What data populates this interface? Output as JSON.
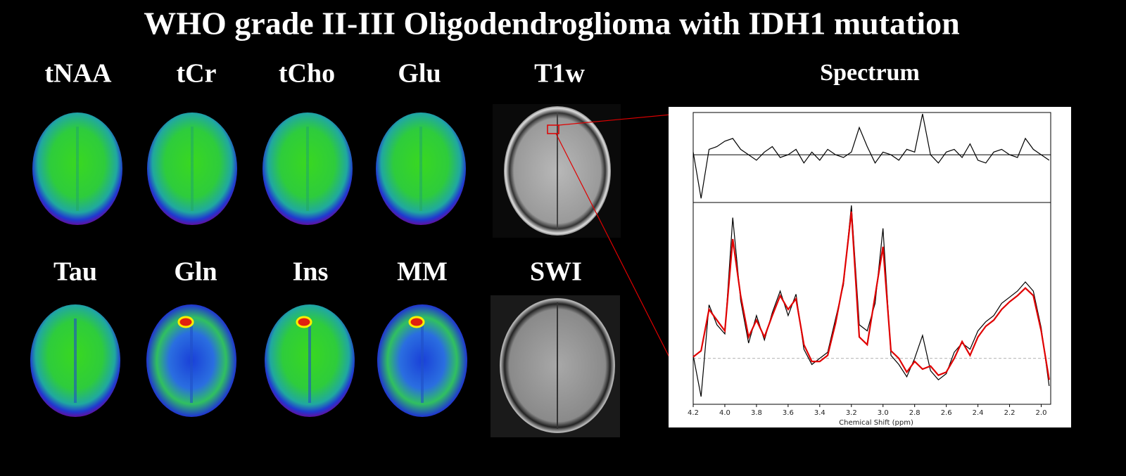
{
  "title": "WHO grade II-III Oligodendroglioma with IDH1 mutation",
  "maps": {
    "row1": [
      "tNAA",
      "tCr",
      "tCho",
      "Glu"
    ],
    "row2": [
      "Tau",
      "Gln",
      "Ins",
      "MM"
    ]
  },
  "anatomy": [
    "T1w",
    "SWI"
  ],
  "spectrum_title": "Spectrum",
  "chart_data": {
    "type": "line",
    "xlabel": "Chemical Shift (ppm)",
    "x": [
      4.2,
      4.15,
      4.1,
      4.05,
      4.0,
      3.95,
      3.9,
      3.85,
      3.8,
      3.75,
      3.7,
      3.65,
      3.6,
      3.55,
      3.5,
      3.45,
      3.4,
      3.35,
      3.3,
      3.25,
      3.2,
      3.15,
      3.1,
      3.05,
      3.0,
      2.95,
      2.9,
      2.85,
      2.8,
      2.75,
      2.7,
      2.65,
      2.6,
      2.55,
      2.5,
      2.45,
      2.4,
      2.35,
      2.3,
      2.25,
      2.2,
      2.15,
      2.1,
      2.05,
      2.0,
      1.95
    ],
    "xlim": [
      4.2,
      1.94
    ],
    "xticks": [
      4.2,
      {
        "value": 4.0,
        "label": "4.0"
      },
      3.8,
      3.6,
      3.4,
      3.2,
      {
        "value": 3.0,
        "label": "3.0"
      },
      2.8,
      2.6,
      2.4,
      2.2,
      {
        "value": 2.0,
        "label": "2.0"
      }
    ],
    "ylim": [
      -30,
      101
    ],
    "series": [
      {
        "color": "#000000",
        "values": [
          2,
          -25,
          35,
          22,
          16,
          92,
          38,
          10,
          28,
          12,
          30,
          44,
          28,
          42,
          6,
          -4,
          0,
          4,
          26,
          48,
          100,
          22,
          18,
          36,
          85,
          2,
          -4,
          -12,
          0,
          15,
          -8,
          -14,
          -10,
          4,
          10,
          6,
          18,
          24,
          28,
          36,
          40,
          44,
          50,
          44,
          20,
          -18
        ]
      },
      {
        "color": "#e00000",
        "values": [
          1,
          5,
          32,
          25,
          18,
          78,
          41,
          14,
          25,
          14,
          28,
          41,
          32,
          39,
          9,
          -2,
          -2,
          2,
          23,
          50,
          96,
          14,
          9,
          41,
          73,
          5,
          0,
          -9,
          -2,
          -7,
          -5,
          -11,
          -9,
          0,
          11,
          2,
          14,
          21,
          25,
          32,
          37,
          41,
          46,
          41,
          18,
          -14
        ]
      }
    ],
    "residual": {
      "ylim": [
        -34,
        30
      ],
      "color": "#000000",
      "values": [
        2,
        -32,
        4,
        6,
        10,
        12,
        4,
        0,
        -4,
        2,
        6,
        -2,
        0,
        4,
        -6,
        2,
        -4,
        4,
        0,
        -2,
        2,
        20,
        6,
        -6,
        2,
        0,
        -4,
        4,
        2,
        30,
        0,
        -6,
        2,
        4,
        -2,
        8,
        -4,
        -6,
        2,
        4,
        0,
        -2,
        12,
        4,
        0,
        -4
      ]
    }
  }
}
